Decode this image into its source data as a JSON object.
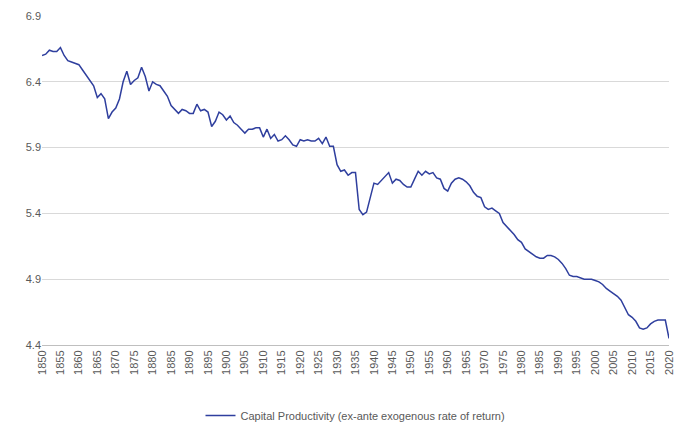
{
  "chart_data": {
    "type": "line",
    "x": [
      1850,
      1851,
      1852,
      1853,
      1854,
      1855,
      1856,
      1857,
      1858,
      1859,
      1860,
      1861,
      1862,
      1863,
      1864,
      1865,
      1866,
      1867,
      1868,
      1869,
      1870,
      1871,
      1872,
      1873,
      1874,
      1875,
      1876,
      1877,
      1878,
      1879,
      1880,
      1881,
      1882,
      1883,
      1884,
      1885,
      1886,
      1887,
      1888,
      1889,
      1890,
      1891,
      1892,
      1893,
      1894,
      1895,
      1896,
      1897,
      1898,
      1899,
      1900,
      1901,
      1902,
      1903,
      1904,
      1905,
      1906,
      1907,
      1908,
      1909,
      1910,
      1911,
      1912,
      1913,
      1914,
      1915,
      1916,
      1917,
      1918,
      1919,
      1920,
      1921,
      1922,
      1923,
      1924,
      1925,
      1926,
      1927,
      1928,
      1929,
      1930,
      1931,
      1932,
      1933,
      1934,
      1935,
      1936,
      1937,
      1938,
      1939,
      1940,
      1941,
      1942,
      1943,
      1944,
      1945,
      1946,
      1947,
      1948,
      1949,
      1950,
      1951,
      1952,
      1953,
      1954,
      1955,
      1956,
      1957,
      1958,
      1959,
      1960,
      1961,
      1962,
      1963,
      1964,
      1965,
      1966,
      1967,
      1968,
      1969,
      1970,
      1971,
      1972,
      1973,
      1974,
      1975,
      1976,
      1977,
      1978,
      1979,
      1980,
      1981,
      1982,
      1983,
      1984,
      1985,
      1986,
      1987,
      1988,
      1989,
      1990,
      1991,
      1992,
      1993,
      1994,
      1995,
      1996,
      1997,
      1998,
      1999,
      2000,
      2001,
      2002,
      2003,
      2004,
      2005,
      2006,
      2007,
      2008,
      2009,
      2010,
      2011,
      2012,
      2013,
      2014,
      2015,
      2016,
      2017,
      2018,
      2019,
      2020
    ],
    "series": [
      {
        "name": "Capital Productivity (ex-ante exogenous rate of return)",
        "color": "#2f3f9e",
        "values": [
          6.6,
          6.61,
          6.64,
          6.63,
          6.63,
          6.66,
          6.6,
          6.56,
          6.55,
          6.54,
          6.53,
          6.49,
          6.45,
          6.41,
          6.37,
          6.28,
          6.31,
          6.27,
          6.12,
          6.17,
          6.2,
          6.27,
          6.4,
          6.48,
          6.38,
          6.41,
          6.43,
          6.51,
          6.44,
          6.33,
          6.4,
          6.38,
          6.37,
          6.33,
          6.29,
          6.22,
          6.19,
          6.16,
          6.19,
          6.18,
          6.16,
          6.16,
          6.23,
          6.18,
          6.19,
          6.17,
          6.06,
          6.1,
          6.17,
          6.15,
          6.11,
          6.14,
          6.09,
          6.07,
          6.04,
          6.01,
          6.04,
          6.04,
          6.05,
          6.05,
          5.98,
          6.04,
          5.97,
          6.0,
          5.95,
          5.96,
          5.99,
          5.96,
          5.92,
          5.91,
          5.96,
          5.95,
          5.96,
          5.95,
          5.95,
          5.97,
          5.93,
          5.98,
          5.91,
          5.91,
          5.77,
          5.72,
          5.73,
          5.69,
          5.71,
          5.71,
          5.43,
          5.39,
          5.41,
          5.52,
          5.63,
          5.62,
          5.65,
          5.68,
          5.71,
          5.63,
          5.66,
          5.65,
          5.62,
          5.6,
          5.6,
          5.66,
          5.72,
          5.69,
          5.72,
          5.7,
          5.71,
          5.67,
          5.66,
          5.59,
          5.57,
          5.63,
          5.66,
          5.67,
          5.66,
          5.64,
          5.61,
          5.56,
          5.53,
          5.52,
          5.45,
          5.43,
          5.44,
          5.42,
          5.4,
          5.33,
          5.3,
          5.27,
          5.24,
          5.2,
          5.18,
          5.13,
          5.11,
          5.09,
          5.07,
          5.06,
          5.06,
          5.08,
          5.08,
          5.07,
          5.05,
          5.02,
          4.98,
          4.93,
          4.92,
          4.92,
          4.91,
          4.9,
          4.9,
          4.9,
          4.89,
          4.88,
          4.86,
          4.83,
          4.81,
          4.79,
          4.77,
          4.74,
          4.69,
          4.63,
          4.61,
          4.58,
          4.53,
          4.52,
          4.53,
          4.56,
          4.58,
          4.59,
          4.59,
          4.59,
          4.45
        ]
      }
    ],
    "xlim": [
      1850,
      2020
    ],
    "xticks": [
      1850,
      1855,
      1860,
      1865,
      1870,
      1875,
      1880,
      1885,
      1890,
      1895,
      1900,
      1905,
      1910,
      1915,
      1920,
      1925,
      1930,
      1935,
      1940,
      1945,
      1950,
      1955,
      1960,
      1965,
      1970,
      1975,
      1980,
      1985,
      1990,
      1995,
      2000,
      2005,
      2010,
      2015,
      2020
    ],
    "ylim": [
      4.4,
      6.9
    ],
    "yticks": [
      4.4,
      4.9,
      5.4,
      5.9,
      6.4,
      6.9
    ],
    "grid": true,
    "legend": "bottom"
  }
}
